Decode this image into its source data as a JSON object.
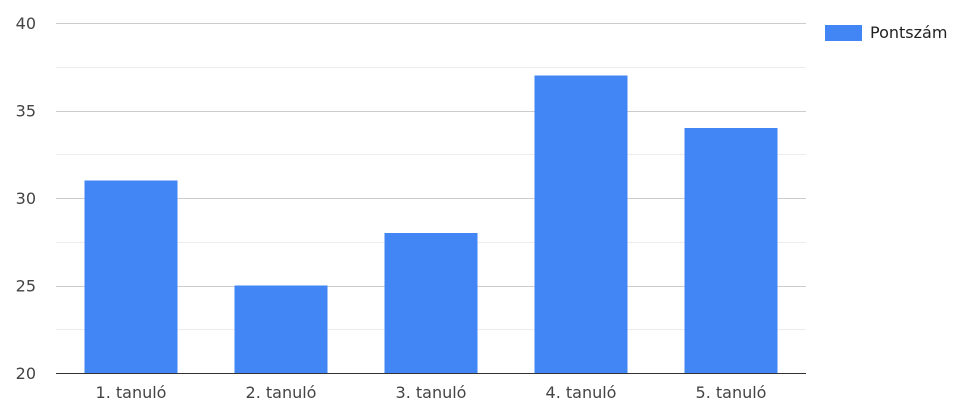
{
  "chart_data": {
    "type": "bar",
    "categories": [
      "1. tanuló",
      "2. tanuló",
      "3. tanuló",
      "4. tanuló",
      "5. tanuló"
    ],
    "series": [
      {
        "name": "Pontszám",
        "values": [
          31,
          25,
          28,
          37,
          34
        ],
        "color": "#4285f4"
      }
    ],
    "title": "",
    "xlabel": "",
    "ylabel": "",
    "ylim": [
      20,
      40
    ],
    "yticks": [
      20,
      25,
      30,
      35,
      40
    ],
    "grid": true,
    "legend_position": "top-right"
  }
}
